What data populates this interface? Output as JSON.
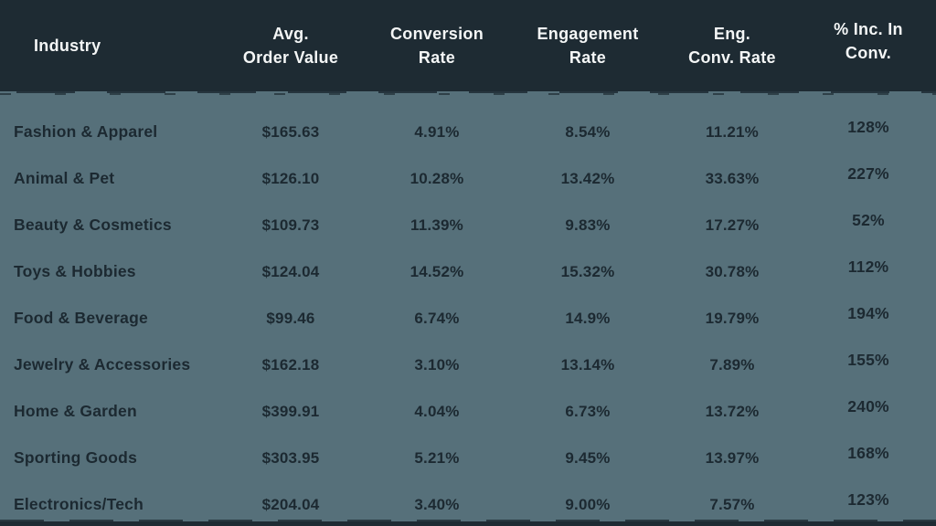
{
  "colors": {
    "header_bg": "#1e2b33",
    "body_bg": "#56707a",
    "body_text": "#1c2931",
    "header_text": "#f4f6f6"
  },
  "chart_data": {
    "type": "table",
    "columns": [
      "Industry",
      "Avg. Order Value",
      "Conversion Rate",
      "Engagement Rate",
      "Eng. Conv. Rate",
      "% Inc. In Conv."
    ],
    "header": {
      "cols": [
        {
          "line1": "Industry",
          "line2": ""
        },
        {
          "line1": "Avg.",
          "line2": "Order Value"
        },
        {
          "line1": "Conversion",
          "line2": "Rate"
        },
        {
          "line1": "Engagement",
          "line2": "Rate"
        },
        {
          "line1": "Eng.",
          "line2": "Conv. Rate"
        },
        {
          "line1": "% Inc. In",
          "line2": "Conv."
        }
      ]
    },
    "rows": [
      [
        "Fashion & Apparel",
        "$165.63",
        "4.91%",
        "8.54%",
        "11.21%",
        "128%"
      ],
      [
        "Animal & Pet",
        "$126.10",
        "10.28%",
        "13.42%",
        "33.63%",
        "227%"
      ],
      [
        "Beauty & Cosmetics",
        "$109.73",
        "11.39%",
        "9.83%",
        "17.27%",
        "52%"
      ],
      [
        "Toys & Hobbies",
        "$124.04",
        "14.52%",
        "15.32%",
        "30.78%",
        "112%"
      ],
      [
        "Food & Beverage",
        "$99.46",
        "6.74%",
        "14.9%",
        "19.79%",
        "194%"
      ],
      [
        "Jewelry & Accessories",
        "$162.18",
        "3.10%",
        "13.14%",
        "7.89%",
        "155%"
      ],
      [
        "Home & Garden",
        "$399.91",
        "4.04%",
        "6.73%",
        "13.72%",
        "240%"
      ],
      [
        "Sporting Goods",
        "$303.95",
        "5.21%",
        "9.45%",
        "13.97%",
        "168%"
      ],
      [
        "Electronics/Tech",
        "$204.04",
        "3.40%",
        "9.00%",
        "7.57%",
        "123%"
      ]
    ]
  }
}
